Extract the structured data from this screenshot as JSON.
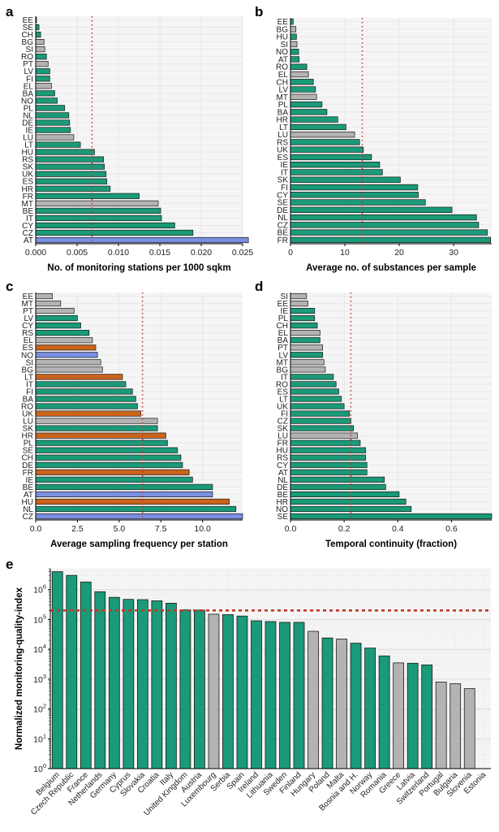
{
  "colors": {
    "green": "#1a9a78",
    "grey": "#b3b3b3",
    "blue": "#7a8fe0",
    "orange": "#c9641c",
    "threshold": "#c0392b",
    "grid": "#e6e6e6",
    "panel_bg": "#f5f5f5"
  },
  "chart_data": [
    {
      "panel": "a",
      "type": "bar",
      "orientation": "horizontal",
      "xlabel": "No. of monitoring stations per 1000 sqkm",
      "xlim": [
        0,
        0.025
      ],
      "xticks": [
        "0.000",
        "0.005",
        "0.010",
        "0.015",
        "0.020",
        "0.025"
      ],
      "threshold": 0.0068,
      "grid": true,
      "bars": [
        {
          "label": "EE",
          "value": 0.0001,
          "color": "green"
        },
        {
          "label": "SE",
          "value": 0.0004,
          "color": "green"
        },
        {
          "label": "CH",
          "value": 0.0006,
          "color": "green"
        },
        {
          "label": "BG",
          "value": 0.001,
          "color": "grey"
        },
        {
          "label": "SI",
          "value": 0.0011,
          "color": "grey"
        },
        {
          "label": "RO",
          "value": 0.0013,
          "color": "green"
        },
        {
          "label": "PT",
          "value": 0.0015,
          "color": "grey"
        },
        {
          "label": "LV",
          "value": 0.0017,
          "color": "green"
        },
        {
          "label": "FI",
          "value": 0.0017,
          "color": "green"
        },
        {
          "label": "EL",
          "value": 0.0019,
          "color": "grey"
        },
        {
          "label": "BA",
          "value": 0.0023,
          "color": "green"
        },
        {
          "label": "NO",
          "value": 0.0026,
          "color": "green"
        },
        {
          "label": "PL",
          "value": 0.0035,
          "color": "green"
        },
        {
          "label": "NL",
          "value": 0.004,
          "color": "green"
        },
        {
          "label": "DE",
          "value": 0.0041,
          "color": "green"
        },
        {
          "label": "IE",
          "value": 0.0042,
          "color": "green"
        },
        {
          "label": "LU",
          "value": 0.0046,
          "color": "grey"
        },
        {
          "label": "LT",
          "value": 0.0054,
          "color": "green"
        },
        {
          "label": "HU",
          "value": 0.0071,
          "color": "green"
        },
        {
          "label": "RS",
          "value": 0.0082,
          "color": "green"
        },
        {
          "label": "SK",
          "value": 0.0083,
          "color": "green"
        },
        {
          "label": "UK",
          "value": 0.0085,
          "color": "green"
        },
        {
          "label": "ES",
          "value": 0.0086,
          "color": "green"
        },
        {
          "label": "HR",
          "value": 0.009,
          "color": "green"
        },
        {
          "label": "FR",
          "value": 0.0125,
          "color": "green"
        },
        {
          "label": "MT",
          "value": 0.0148,
          "color": "grey"
        },
        {
          "label": "BE",
          "value": 0.0151,
          "color": "green"
        },
        {
          "label": "IT",
          "value": 0.0152,
          "color": "green"
        },
        {
          "label": "CY",
          "value": 0.0168,
          "color": "green"
        },
        {
          "label": "CZ",
          "value": 0.019,
          "color": "green"
        },
        {
          "label": "AT",
          "value": 0.0257,
          "color": "blue"
        }
      ]
    },
    {
      "panel": "b",
      "type": "bar",
      "orientation": "horizontal",
      "xlabel": "Average no. of substances per sample",
      "xlim": [
        0,
        37
      ],
      "xticks": [
        "0",
        "10",
        "20",
        "30"
      ],
      "threshold": 13.2,
      "grid": true,
      "bars": [
        {
          "label": "EE",
          "value": 0.5,
          "color": "green"
        },
        {
          "label": "BG",
          "value": 1.0,
          "color": "grey"
        },
        {
          "label": "HU",
          "value": 1.1,
          "color": "green"
        },
        {
          "label": "SI",
          "value": 1.2,
          "color": "grey"
        },
        {
          "label": "NO",
          "value": 1.5,
          "color": "green"
        },
        {
          "label": "AT",
          "value": 1.6,
          "color": "green"
        },
        {
          "label": "RO",
          "value": 3.0,
          "color": "green"
        },
        {
          "label": "EL",
          "value": 3.3,
          "color": "grey"
        },
        {
          "label": "CH",
          "value": 4.2,
          "color": "green"
        },
        {
          "label": "LV",
          "value": 4.6,
          "color": "green"
        },
        {
          "label": "MT",
          "value": 4.8,
          "color": "grey"
        },
        {
          "label": "PL",
          "value": 5.8,
          "color": "green"
        },
        {
          "label": "BA",
          "value": 6.7,
          "color": "green"
        },
        {
          "label": "HR",
          "value": 8.7,
          "color": "green"
        },
        {
          "label": "LT",
          "value": 10.2,
          "color": "green"
        },
        {
          "label": "LU",
          "value": 11.8,
          "color": "grey"
        },
        {
          "label": "RS",
          "value": 12.7,
          "color": "green"
        },
        {
          "label": "UK",
          "value": 13.4,
          "color": "green"
        },
        {
          "label": "ES",
          "value": 14.9,
          "color": "green"
        },
        {
          "label": "IE",
          "value": 16.4,
          "color": "green"
        },
        {
          "label": "IT",
          "value": 16.9,
          "color": "green"
        },
        {
          "label": "SK",
          "value": 20.2,
          "color": "green"
        },
        {
          "label": "FI",
          "value": 23.4,
          "color": "green"
        },
        {
          "label": "CY",
          "value": 23.5,
          "color": "green"
        },
        {
          "label": "SE",
          "value": 24.8,
          "color": "green"
        },
        {
          "label": "DE",
          "value": 29.7,
          "color": "green"
        },
        {
          "label": "NL",
          "value": 34.2,
          "color": "green"
        },
        {
          "label": "CZ",
          "value": 34.6,
          "color": "green"
        },
        {
          "label": "BE",
          "value": 36.2,
          "color": "green"
        },
        {
          "label": "FR",
          "value": 36.8,
          "color": "green"
        }
      ]
    },
    {
      "panel": "c",
      "type": "bar",
      "orientation": "horizontal",
      "xlabel": "Average sampling frequency per station",
      "xlim": [
        0,
        12.4
      ],
      "xticks": [
        "0.0",
        "2.5",
        "5.0",
        "7.5",
        "10.0"
      ],
      "threshold": 6.4,
      "grid": true,
      "bars": [
        {
          "label": "EE",
          "value": 1.0,
          "color": "grey"
        },
        {
          "label": "MT",
          "value": 1.5,
          "color": "grey"
        },
        {
          "label": "PT",
          "value": 2.3,
          "color": "grey"
        },
        {
          "label": "LV",
          "value": 2.5,
          "color": "green"
        },
        {
          "label": "CY",
          "value": 2.7,
          "color": "green"
        },
        {
          "label": "RS",
          "value": 3.2,
          "color": "green"
        },
        {
          "label": "EL",
          "value": 3.4,
          "color": "grey"
        },
        {
          "label": "ES",
          "value": 3.6,
          "color": "orange"
        },
        {
          "label": "NO",
          "value": 3.7,
          "color": "blue"
        },
        {
          "label": "SI",
          "value": 3.9,
          "color": "grey"
        },
        {
          "label": "BG",
          "value": 4.0,
          "color": "grey"
        },
        {
          "label": "LT",
          "value": 5.2,
          "color": "orange"
        },
        {
          "label": "IT",
          "value": 5.4,
          "color": "green"
        },
        {
          "label": "FI",
          "value": 5.8,
          "color": "green"
        },
        {
          "label": "BA",
          "value": 6.0,
          "color": "green"
        },
        {
          "label": "RO",
          "value": 6.1,
          "color": "green"
        },
        {
          "label": "UK",
          "value": 6.3,
          "color": "orange"
        },
        {
          "label": "LU",
          "value": 7.3,
          "color": "grey"
        },
        {
          "label": "SK",
          "value": 7.3,
          "color": "green"
        },
        {
          "label": "HR",
          "value": 7.8,
          "color": "orange"
        },
        {
          "label": "PL",
          "value": 7.9,
          "color": "green"
        },
        {
          "label": "SE",
          "value": 8.5,
          "color": "green"
        },
        {
          "label": "CH",
          "value": 8.7,
          "color": "green"
        },
        {
          "label": "DE",
          "value": 8.8,
          "color": "green"
        },
        {
          "label": "FR",
          "value": 9.2,
          "color": "orange"
        },
        {
          "label": "IE",
          "value": 9.4,
          "color": "green"
        },
        {
          "label": "BE",
          "value": 10.6,
          "color": "green"
        },
        {
          "label": "AT",
          "value": 10.6,
          "color": "blue"
        },
        {
          "label": "HU",
          "value": 11.6,
          "color": "orange"
        },
        {
          "label": "NL",
          "value": 12.0,
          "color": "green"
        },
        {
          "label": "CZ",
          "value": 12.4,
          "color": "blue"
        }
      ]
    },
    {
      "panel": "d",
      "type": "bar",
      "orientation": "horizontal",
      "xlabel": "Temporal continuity (fraction)",
      "xlim": [
        0,
        0.75
      ],
      "xticks": [
        "0.0",
        "0.2",
        "0.4",
        "0.6"
      ],
      "threshold": 0.225,
      "grid": true,
      "bars": [
        {
          "label": "SI",
          "value": 0.06,
          "color": "grey"
        },
        {
          "label": "EE",
          "value": 0.065,
          "color": "grey"
        },
        {
          "label": "IE",
          "value": 0.09,
          "color": "green"
        },
        {
          "label": "PL",
          "value": 0.09,
          "color": "green"
        },
        {
          "label": "CH",
          "value": 0.1,
          "color": "green"
        },
        {
          "label": "EL",
          "value": 0.11,
          "color": "grey"
        },
        {
          "label": "BA",
          "value": 0.11,
          "color": "green"
        },
        {
          "label": "PT",
          "value": 0.12,
          "color": "grey"
        },
        {
          "label": "LV",
          "value": 0.12,
          "color": "green"
        },
        {
          "label": "MT",
          "value": 0.125,
          "color": "grey"
        },
        {
          "label": "BG",
          "value": 0.13,
          "color": "grey"
        },
        {
          "label": "IT",
          "value": 0.16,
          "color": "green"
        },
        {
          "label": "RO",
          "value": 0.17,
          "color": "green"
        },
        {
          "label": "ES",
          "value": 0.18,
          "color": "green"
        },
        {
          "label": "LT",
          "value": 0.19,
          "color": "green"
        },
        {
          "label": "UK",
          "value": 0.2,
          "color": "green"
        },
        {
          "label": "FI",
          "value": 0.22,
          "color": "green"
        },
        {
          "label": "CZ",
          "value": 0.225,
          "color": "green"
        },
        {
          "label": "SK",
          "value": 0.235,
          "color": "green"
        },
        {
          "label": "LU",
          "value": 0.25,
          "color": "grey"
        },
        {
          "label": "FR",
          "value": 0.26,
          "color": "green"
        },
        {
          "label": "HU",
          "value": 0.28,
          "color": "green"
        },
        {
          "label": "RS",
          "value": 0.28,
          "color": "green"
        },
        {
          "label": "CY",
          "value": 0.285,
          "color": "green"
        },
        {
          "label": "AT",
          "value": 0.285,
          "color": "green"
        },
        {
          "label": "NL",
          "value": 0.35,
          "color": "green"
        },
        {
          "label": "DE",
          "value": 0.355,
          "color": "green"
        },
        {
          "label": "BE",
          "value": 0.405,
          "color": "green"
        },
        {
          "label": "HR",
          "value": 0.43,
          "color": "green"
        },
        {
          "label": "NO",
          "value": 0.45,
          "color": "green"
        },
        {
          "label": "SE",
          "value": 0.75,
          "color": "green"
        }
      ]
    },
    {
      "panel": "e",
      "type": "bar",
      "orientation": "vertical",
      "yscale": "log",
      "ylabel": "Normalized monitoring-quality-index",
      "ylim": [
        1,
        5000000
      ],
      "yticks": [
        {
          "value": 1,
          "base": "10",
          "exp": "0"
        },
        {
          "value": 10,
          "base": "10",
          "exp": "1"
        },
        {
          "value": 100,
          "base": "10",
          "exp": "2"
        },
        {
          "value": 1000,
          "base": "10",
          "exp": "3"
        },
        {
          "value": 10000,
          "base": "10",
          "exp": "4"
        },
        {
          "value": 100000,
          "base": "10",
          "exp": "5"
        },
        {
          "value": 1000000,
          "base": "10",
          "exp": "6"
        }
      ],
      "threshold": 200000,
      "grid": true,
      "bars": [
        {
          "label": "Belgium",
          "value": 4000000,
          "color": "green"
        },
        {
          "label": "Czech Republic",
          "value": 3000000,
          "color": "green"
        },
        {
          "label": "France",
          "value": 1800000,
          "color": "green"
        },
        {
          "label": "Netherlands",
          "value": 850000,
          "color": "green"
        },
        {
          "label": "Germany",
          "value": 550000,
          "color": "green"
        },
        {
          "label": "Cyprus",
          "value": 470000,
          "color": "green"
        },
        {
          "label": "Slovakia",
          "value": 460000,
          "color": "green"
        },
        {
          "label": "Croatia",
          "value": 420000,
          "color": "green"
        },
        {
          "label": "Italy",
          "value": 350000,
          "color": "green"
        },
        {
          "label": "United Kingdom",
          "value": 210000,
          "color": "green"
        },
        {
          "label": "Austria",
          "value": 205000,
          "color": "green"
        },
        {
          "label": "Luxembourg",
          "value": 150000,
          "color": "grey"
        },
        {
          "label": "Serbia",
          "value": 145000,
          "color": "green"
        },
        {
          "label": "Spain",
          "value": 130000,
          "color": "green"
        },
        {
          "label": "Ireland",
          "value": 90000,
          "color": "green"
        },
        {
          "label": "Lithuania",
          "value": 85000,
          "color": "green"
        },
        {
          "label": "Sweden",
          "value": 80000,
          "color": "green"
        },
        {
          "label": "Finland",
          "value": 80000,
          "color": "green"
        },
        {
          "label": "Hungary",
          "value": 40000,
          "color": "grey"
        },
        {
          "label": "Poland",
          "value": 24000,
          "color": "green"
        },
        {
          "label": "Malta",
          "value": 22000,
          "color": "grey"
        },
        {
          "label": "Bosnia and H.",
          "value": 16000,
          "color": "green"
        },
        {
          "label": "Norway",
          "value": 11000,
          "color": "green"
        },
        {
          "label": "Romania",
          "value": 6000,
          "color": "green"
        },
        {
          "label": "Greece",
          "value": 3500,
          "color": "grey"
        },
        {
          "label": "Latvia",
          "value": 3400,
          "color": "green"
        },
        {
          "label": "Switzerland",
          "value": 3000,
          "color": "green"
        },
        {
          "label": "Portugal",
          "value": 800,
          "color": "grey"
        },
        {
          "label": "Bulgaria",
          "value": 700,
          "color": "grey"
        },
        {
          "label": "Slovenia",
          "value": 480,
          "color": "grey"
        },
        {
          "label": "Estonia",
          "value": 1,
          "color": "green"
        }
      ]
    }
  ]
}
